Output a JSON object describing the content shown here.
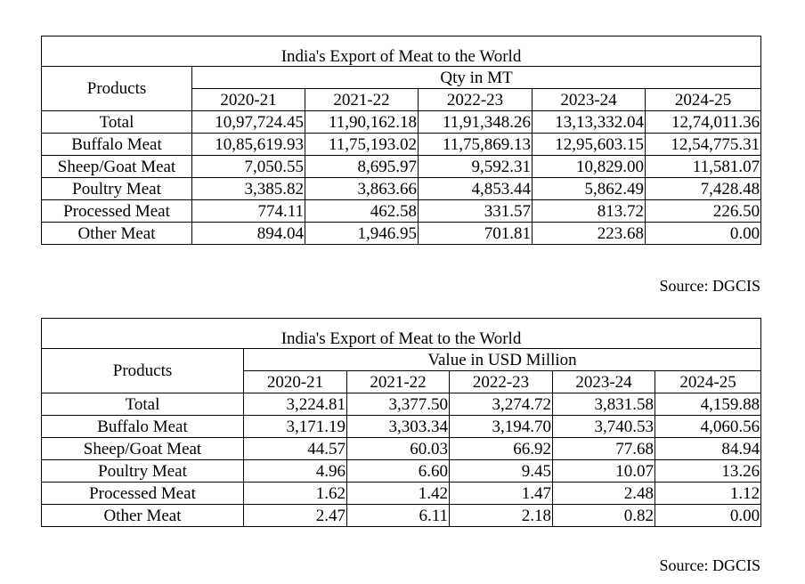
{
  "tables": [
    {
      "title": "India's Export of Meat to the World",
      "products_header": "Products",
      "measure_header": "Qty in MT",
      "years": [
        "2020-21",
        "2021-22",
        "2022-23",
        "2023-24",
        "2024-25"
      ],
      "rows": [
        {
          "product": "Total",
          "values": [
            "10,97,724.45",
            "11,90,162.18",
            "11,91,348.26",
            "13,13,332.04",
            "12,74,011.36"
          ]
        },
        {
          "product": "Buffalo Meat",
          "values": [
            "10,85,619.93",
            "11,75,193.02",
            "11,75,869.13",
            "12,95,603.15",
            "12,54,775.31"
          ]
        },
        {
          "product": "Sheep/Goat Meat",
          "values": [
            "7,050.55",
            "8,695.97",
            "9,592.31",
            "10,829.00",
            "11,581.07"
          ]
        },
        {
          "product": "Poultry Meat",
          "values": [
            "3,385.82",
            "3,863.66",
            "4,853.44",
            "5,862.49",
            "7,428.48"
          ]
        },
        {
          "product": "Processed Meat",
          "values": [
            "774.11",
            "462.58",
            "331.57",
            "813.72",
            "226.50"
          ]
        },
        {
          "product": "Other Meat",
          "values": [
            "894.04",
            "1,946.95",
            "701.81",
            "223.68",
            "0.00"
          ]
        }
      ],
      "source": "Source: DGCIS"
    },
    {
      "title": "India's Export of Meat to the World",
      "products_header": "Products",
      "measure_header": "Value in USD Million",
      "years": [
        "2020-21",
        "2021-22",
        "2022-23",
        "2023-24",
        "2024-25"
      ],
      "rows": [
        {
          "product": "Total",
          "values": [
            "3,224.81",
            "3,377.50",
            "3,274.72",
            "3,831.58",
            "4,159.88"
          ]
        },
        {
          "product": "Buffalo Meat",
          "values": [
            "3,171.19",
            "3,303.34",
            "3,194.70",
            "3,740.53",
            "4,060.56"
          ]
        },
        {
          "product": "Sheep/Goat Meat",
          "values": [
            "44.57",
            "60.03",
            "66.92",
            "77.68",
            "84.94"
          ]
        },
        {
          "product": "Poultry Meat",
          "values": [
            "4.96",
            "6.60",
            "9.45",
            "10.07",
            "13.26"
          ]
        },
        {
          "product": "Processed Meat",
          "values": [
            "1.62",
            "1.42",
            "1.47",
            "2.48",
            "1.12"
          ]
        },
        {
          "product": "Other Meat",
          "values": [
            "2.47",
            "6.11",
            "2.18",
            "0.82",
            "0.00"
          ]
        }
      ],
      "source": "Source: DGCIS"
    }
  ]
}
